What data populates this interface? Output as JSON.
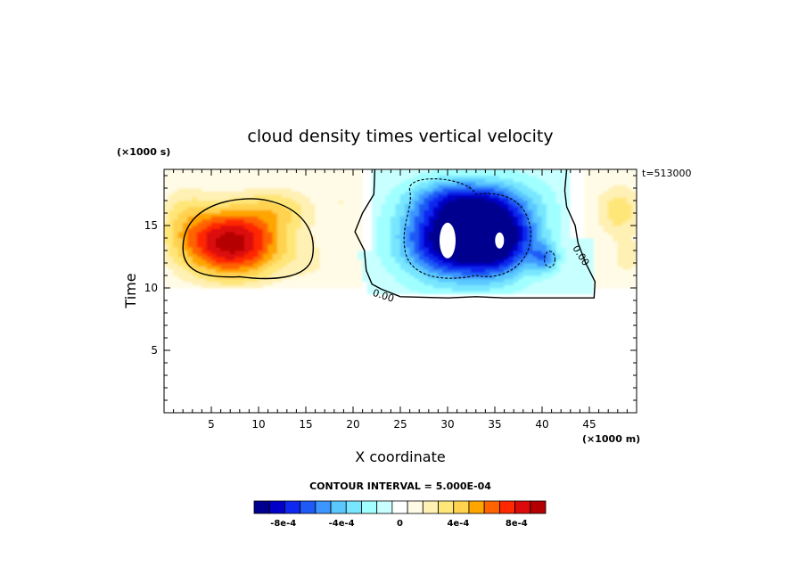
{
  "chart_data": {
    "type": "heatmap",
    "title": "cloud density times vertical velocity",
    "xlabel": "X coordinate",
    "ylabel": "Time",
    "x_units": "(×1000 m)",
    "y_units": "(×1000 s)",
    "time_label": "t=513000",
    "xlim": [
      0,
      50
    ],
    "ylim": [
      0,
      19.5
    ],
    "x_ticks": [
      5,
      10,
      15,
      20,
      25,
      30,
      35,
      40,
      45
    ],
    "y_ticks": [
      5,
      10,
      15
    ],
    "contour_interval_text": "CONTOUR INTERVAL = 5.000E-04",
    "zero_contour_label": "0.00",
    "colorbar": {
      "colors": [
        "#00008f",
        "#0000c8",
        "#0f28f0",
        "#1e5af5",
        "#3c96ff",
        "#5ac8ff",
        "#78e6ff",
        "#a0ffff",
        "#c8ffff",
        "#ffffff",
        "#fffbe6",
        "#fff0b4",
        "#ffe678",
        "#ffd250",
        "#ffa500",
        "#ff6400",
        "#ff2800",
        "#dc0a0a",
        "#b40000"
      ],
      "ticks": [
        {
          "label": "-8e-4",
          "value": -0.0008
        },
        {
          "label": "-4e-4",
          "value": -0.0004
        },
        {
          "label": "0",
          "value": 0
        },
        {
          "label": "4e-4",
          "value": 0.0004
        },
        {
          "label": "8e-4",
          "value": 0.0008
        }
      ],
      "range": [
        -0.001,
        0.001
      ]
    },
    "field_features": [
      {
        "kind": "positive_max",
        "x": 7,
        "y": 13.5,
        "value": 0.00095
      },
      {
        "kind": "positive_weak",
        "x": 19,
        "y": 17,
        "value": 0.0002
      },
      {
        "kind": "positive_weak",
        "x": 48,
        "y": 16,
        "value": 0.0003
      },
      {
        "kind": "negative_min",
        "x": 30,
        "y": 13.8,
        "value": -0.001
      },
      {
        "kind": "negative_min",
        "x": 35.5,
        "y": 13.8,
        "value": -0.001
      },
      {
        "kind": "negative_weak",
        "x": 41,
        "y": 12.2,
        "value": -0.0004
      }
    ]
  }
}
